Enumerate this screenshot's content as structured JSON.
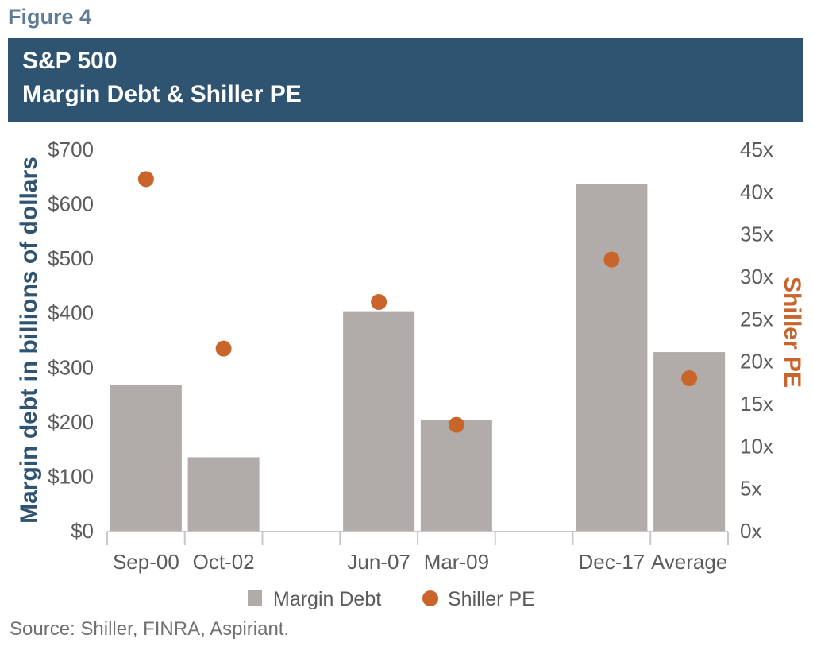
{
  "figure_label": "Figure 4",
  "title_line1": "S&P 500",
  "title_line2": "Margin Debt & Shiller PE",
  "source": "Source: Shiller, FINRA, Aspiriant.",
  "colors": {
    "bar": "#b1aca9",
    "dot": "#c9652b",
    "title_band": "#2f5472",
    "axis": "#c8c8c8"
  },
  "chart_data": {
    "type": "bar",
    "slots": [
      "Sep-00",
      "Oct-02",
      "",
      "Jun-07",
      "Mar-09",
      "",
      "Dec-17",
      "Average"
    ],
    "series": [
      {
        "name": "Margin Debt",
        "type": "bar",
        "axis": "left",
        "values": [
          268,
          135,
          null,
          403,
          203,
          null,
          637,
          328
        ]
      },
      {
        "name": "Shiller PE",
        "type": "scatter",
        "axis": "right",
        "values": [
          41.5,
          21.5,
          null,
          27,
          12.5,
          null,
          32,
          18
        ]
      }
    ],
    "ylabel": "Margin debt in billions of dollars",
    "y2label": "Shiller PE",
    "ylim": [
      0,
      700
    ],
    "y2lim": [
      0,
      45
    ],
    "yticks": [
      "$0",
      "$100",
      "$200",
      "$300",
      "$400",
      "$500",
      "$600",
      "$700"
    ],
    "y2ticks": [
      "0x",
      "5x",
      "10x",
      "15x",
      "20x",
      "25x",
      "30x",
      "35x",
      "40x",
      "45x"
    ],
    "legend": [
      "Margin Debt",
      "Shiller PE"
    ],
    "legend_position": "bottom"
  }
}
